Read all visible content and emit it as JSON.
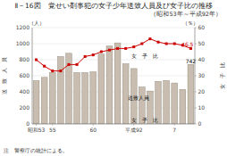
{
  "chart_data": {
    "type": "bar",
    "title": "Ⅱ－16図　覚せい剤事犯の女子少年送致人員及び女子比の推移",
    "subtitle": "（昭和53年～平成92年）",
    "note": "注　警察庁の統計による。",
    "y_unit": "（人）",
    "y2_unit": "（％）",
    "ylabel": "送　致　人　員",
    "y2label": "女　子　比",
    "categories": [
      "昭和53",
      null,
      "55",
      null,
      null,
      null,
      null,
      "60",
      null,
      null,
      null,
      null,
      "平成92",
      null,
      null,
      null,
      null,
      "7",
      null,
      null
    ],
    "series": [
      {
        "type": "bar",
        "color": "#c8bdb0",
        "values": [
          540,
          580,
          640,
          840,
          880,
          640,
          640,
          650,
          870,
          970,
          1010,
          750,
          690,
          460,
          410,
          530,
          540,
          510,
          430,
          742
        ]
      },
      {
        "type": "line",
        "axis": "y2",
        "color": "#cc0000",
        "marker": "square",
        "values": [
          40,
          36,
          33,
          33,
          37,
          37,
          42,
          43,
          45,
          46,
          47,
          47,
          48,
          50,
          53,
          51,
          50,
          50,
          49,
          47
        ]
      }
    ],
    "annotations": [
      "送致人員",
      "女　子　比",
      "女　子　比",
      "742",
      "46.5"
    ],
    "ylim": [
      0,
      1200
    ],
    "yticks": [
      0,
      200,
      400,
      600,
      800,
      1000,
      1200
    ],
    "y2lim": [
      0,
      60
    ],
    "y2ticks": [
      0,
      10,
      20,
      30,
      40,
      50,
      60
    ],
    "grid": true
  }
}
